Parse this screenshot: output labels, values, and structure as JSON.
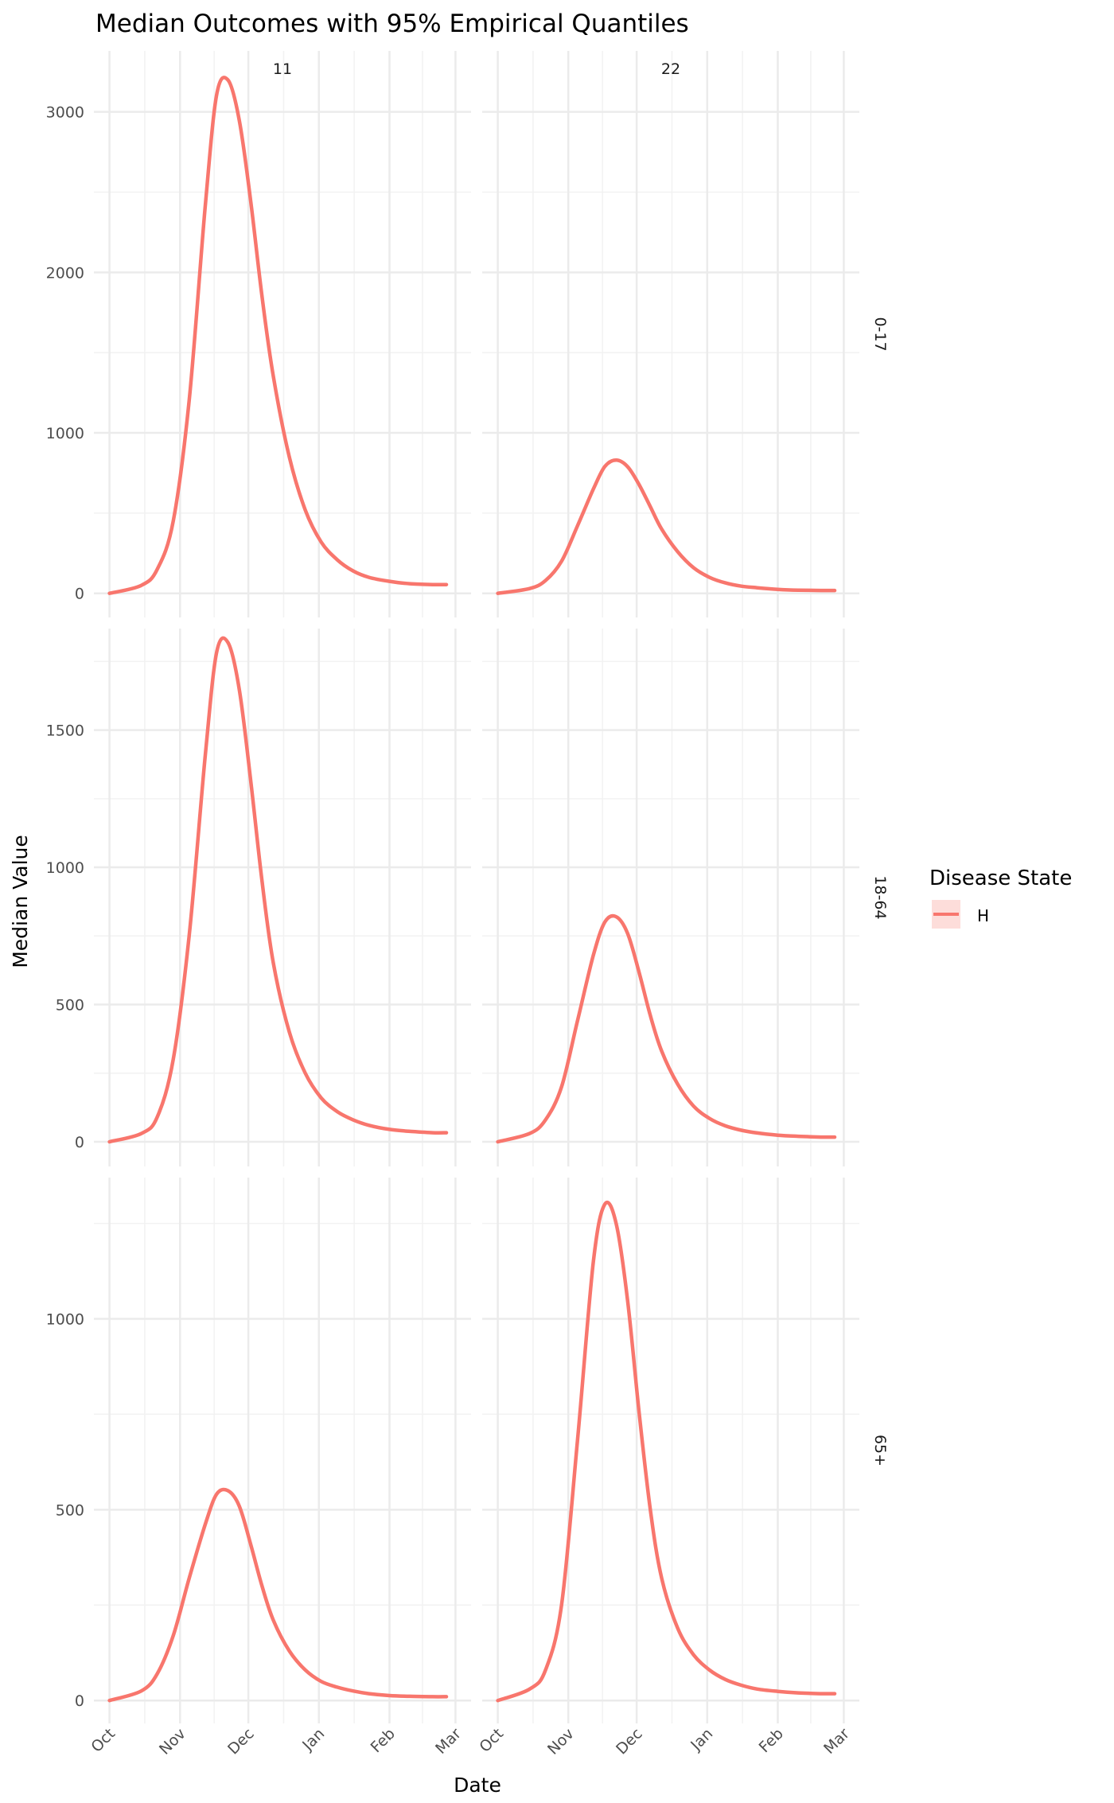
{
  "chart_data": {
    "type": "line",
    "title": "Median Outcomes with 95% Empirical Quantiles",
    "xlabel": "Date",
    "ylabel": "Median Value",
    "legend": {
      "title": "Disease State",
      "entries": [
        "H"
      ],
      "placement": "right"
    },
    "line_color": "#F8766D",
    "x_ticks": [
      "Oct",
      "Nov",
      "Dec",
      "Jan",
      "Feb",
      "Mar"
    ],
    "x_tick_dates": [
      "2023-10-01",
      "2023-11-01",
      "2023-12-01",
      "2024-01-01",
      "2024-02-01",
      "2024-03-01"
    ],
    "x_range": [
      "2023-10-01",
      "2024-03-01"
    ],
    "columns": [
      "11",
      "22"
    ],
    "rows": [
      "0-17",
      "18-64",
      "65+"
    ],
    "row_scales": [
      {
        "ylim": [
          -150,
          3380
        ],
        "ticks": [
          0,
          1000,
          2000,
          3000
        ],
        "tick_labels": [
          "0",
          "1000",
          "2000",
          "3000"
        ]
      },
      {
        "ylim": [
          -90,
          1870
        ],
        "ticks": [
          0,
          500,
          1000,
          1500
        ],
        "tick_labels": [
          "0",
          "500",
          "1000",
          "1500"
        ]
      },
      {
        "ylim": [
          -60,
          1370
        ],
        "ticks": [
          0,
          500,
          1000
        ],
        "tick_labels": [
          "0",
          "500",
          "1000"
        ]
      }
    ],
    "series": [
      {
        "panel": [
          "0-17",
          "11"
        ],
        "x": [
          "2023-10-01",
          "2023-10-15",
          "2023-10-22",
          "2023-10-29",
          "2023-11-05",
          "2023-11-12",
          "2023-11-17",
          "2023-11-22",
          "2023-11-27",
          "2023-12-02",
          "2023-12-07",
          "2023-12-12",
          "2023-12-19",
          "2023-12-26",
          "2024-01-02",
          "2024-01-09",
          "2024-01-16",
          "2024-01-23",
          "2024-02-01",
          "2024-02-10",
          "2024-02-20",
          "2024-02-26"
        ],
        "y": [
          0,
          50,
          150,
          450,
          1200,
          2400,
          3100,
          3200,
          2950,
          2450,
          1850,
          1350,
          850,
          520,
          320,
          210,
          140,
          100,
          75,
          60,
          55,
          55
        ]
      },
      {
        "panel": [
          "0-17",
          "22"
        ],
        "x": [
          "2023-10-01",
          "2023-10-15",
          "2023-10-22",
          "2023-10-29",
          "2023-11-05",
          "2023-11-12",
          "2023-11-17",
          "2023-11-22",
          "2023-11-27",
          "2023-12-02",
          "2023-12-07",
          "2023-12-12",
          "2023-12-19",
          "2023-12-26",
          "2024-01-02",
          "2024-01-09",
          "2024-01-16",
          "2024-01-23",
          "2024-02-01",
          "2024-02-10",
          "2024-02-20",
          "2024-02-26"
        ],
        "y": [
          0,
          30,
          80,
          200,
          420,
          650,
          790,
          830,
          790,
          680,
          540,
          400,
          260,
          160,
          100,
          65,
          45,
          35,
          25,
          20,
          18,
          18
        ]
      },
      {
        "panel": [
          "18-64",
          "11"
        ],
        "x": [
          "2023-10-01",
          "2023-10-15",
          "2023-10-22",
          "2023-10-29",
          "2023-11-05",
          "2023-11-12",
          "2023-11-17",
          "2023-11-22",
          "2023-11-27",
          "2023-12-02",
          "2023-12-07",
          "2023-12-12",
          "2023-12-19",
          "2023-12-26",
          "2024-01-02",
          "2024-01-09",
          "2024-01-16",
          "2024-01-23",
          "2024-02-01",
          "2024-02-10",
          "2024-02-20",
          "2024-02-26"
        ],
        "y": [
          0,
          30,
          90,
          300,
          750,
          1400,
          1780,
          1820,
          1650,
          1320,
          950,
          650,
          400,
          250,
          160,
          110,
          80,
          60,
          45,
          38,
          33,
          33
        ]
      },
      {
        "panel": [
          "18-64",
          "22"
        ],
        "x": [
          "2023-10-01",
          "2023-10-15",
          "2023-10-22",
          "2023-10-29",
          "2023-11-05",
          "2023-11-12",
          "2023-11-17",
          "2023-11-22",
          "2023-11-27",
          "2023-12-02",
          "2023-12-07",
          "2023-12-12",
          "2023-12-19",
          "2023-12-26",
          "2024-01-02",
          "2024-01-09",
          "2024-01-16",
          "2024-01-23",
          "2024-02-01",
          "2024-02-10",
          "2024-02-20",
          "2024-02-26"
        ],
        "y": [
          0,
          30,
          80,
          200,
          440,
          680,
          800,
          820,
          760,
          620,
          460,
          330,
          210,
          130,
          85,
          58,
          42,
          32,
          24,
          20,
          17,
          17
        ]
      },
      {
        "panel": [
          "65+",
          "11"
        ],
        "x": [
          "2023-10-01",
          "2023-10-15",
          "2023-10-22",
          "2023-10-29",
          "2023-11-05",
          "2023-11-12",
          "2023-11-17",
          "2023-11-22",
          "2023-11-27",
          "2023-12-02",
          "2023-12-07",
          "2023-12-12",
          "2023-12-19",
          "2023-12-26",
          "2024-01-02",
          "2024-01-09",
          "2024-01-16",
          "2024-01-23",
          "2024-02-01",
          "2024-02-10",
          "2024-02-20",
          "2024-02-26"
        ],
        "y": [
          0,
          25,
          70,
          170,
          320,
          460,
          540,
          550,
          510,
          410,
          300,
          210,
          130,
          80,
          50,
          35,
          25,
          18,
          13,
          11,
          10,
          10
        ]
      },
      {
        "panel": [
          "65+",
          "22"
        ],
        "x": [
          "2023-10-01",
          "2023-10-15",
          "2023-10-22",
          "2023-10-29",
          "2023-11-05",
          "2023-11-12",
          "2023-11-17",
          "2023-11-22",
          "2023-11-27",
          "2023-12-02",
          "2023-12-07",
          "2023-12-12",
          "2023-12-19",
          "2023-12-26",
          "2024-01-02",
          "2024-01-09",
          "2024-01-16",
          "2024-01-23",
          "2024-02-01",
          "2024-02-10",
          "2024-02-20",
          "2024-02-26"
        ],
        "y": [
          0,
          30,
          80,
          250,
          680,
          1150,
          1300,
          1250,
          1050,
          760,
          500,
          320,
          190,
          120,
          80,
          55,
          40,
          30,
          24,
          20,
          18,
          18
        ]
      }
    ]
  }
}
